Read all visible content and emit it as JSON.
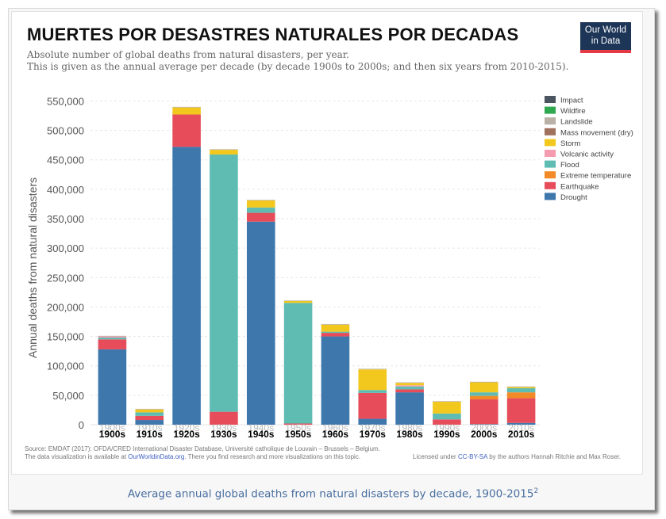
{
  "header": {
    "big_title": "MUERTES POR DESASTRES NATURALES POR DECADAS",
    "subtitle_1": "Absolute number of global deaths from natural disasters, per year.",
    "subtitle_2": "This is given as the annual average per decade (by decade 1900s to 2000s; and then six years from 2010-2015).",
    "logo_line_1": "Our World",
    "logo_line_2": "in Data"
  },
  "footer": {
    "source_line": "Source: EMDAT (2017): OFDA/CRED International Disaster Database, Université catholique de Louvain – Brussels – Belgium.",
    "availability_prefix": "The data visualization is available at ",
    "availability_link": "OurWorldinData.org",
    "availability_suffix": ". There you find research and more visualizations on this topic.",
    "license_prefix": "Licensed under ",
    "license_link": "CC-BY-SA",
    "license_suffix": " by the authors Hannah Ritchie and Max Roser."
  },
  "caption": {
    "text": "Average annual global deaths from natural disasters by decade, 1900-2015",
    "footnote": "2"
  },
  "chart_data": {
    "type": "bar",
    "stacked": true,
    "title": "",
    "xlabel": "",
    "ylabel": "Annual deaths from natural disasters",
    "ylim": [
      0,
      560000
    ],
    "yticks": [
      0,
      50000,
      100000,
      150000,
      200000,
      250000,
      300000,
      350000,
      400000,
      450000,
      500000,
      550000
    ],
    "ytick_labels": [
      "0",
      "50,000",
      "100,000",
      "150,000",
      "200,000",
      "250,000",
      "300,000",
      "350,000",
      "400,000",
      "450,000",
      "500,000",
      "550,000"
    ],
    "categories": [
      "1900s",
      "1910s",
      "1920s",
      "1930s",
      "1940s",
      "1950s",
      "1960s",
      "1970s",
      "1980s",
      "1990s",
      "2000s",
      "2010s"
    ],
    "grid": true,
    "legend_position": "top-right",
    "series": [
      {
        "name": "Drought",
        "color": "#3d77ac",
        "values": [
          128000,
          8000,
          472000,
          0,
          345000,
          0,
          150000,
          10000,
          55000,
          0,
          1000,
          3000
        ]
      },
      {
        "name": "Earthquake",
        "color": "#e74c5a",
        "values": [
          17000,
          7000,
          55000,
          22000,
          15000,
          2000,
          6000,
          44000,
          5000,
          9000,
          42000,
          42000
        ]
      },
      {
        "name": "Extreme temperature",
        "color": "#f28a27",
        "values": [
          0,
          0,
          0,
          0,
          0,
          0,
          0,
          0,
          0,
          0,
          6000,
          10000
        ]
      },
      {
        "name": "Flood",
        "color": "#5ebcb3",
        "values": [
          3000,
          6000,
          0,
          437000,
          9000,
          205000,
          2000,
          5000,
          5000,
          10000,
          6000,
          7000
        ]
      },
      {
        "name": "Volcanic activity",
        "color": "#f49bb0",
        "values": [
          2000,
          0,
          0,
          0,
          0,
          0,
          0,
          0,
          2000,
          0,
          0,
          0
        ]
      },
      {
        "name": "Mass movement (dry)",
        "color": "#a0715c",
        "values": [
          0,
          0,
          0,
          0,
          0,
          0,
          0,
          0,
          0,
          0,
          0,
          0
        ]
      },
      {
        "name": "Storm",
        "color": "#f2c81e",
        "values": [
          0,
          5000,
          12000,
          8000,
          12000,
          3000,
          12000,
          35000,
          4000,
          20000,
          17000,
          2000
        ]
      },
      {
        "name": "Landslide",
        "color": "#b9b1a6",
        "values": [
          1000,
          1000,
          1000,
          1000,
          1000,
          1000,
          1000,
          1000,
          1000,
          1000,
          1000,
          1000
        ]
      },
      {
        "name": "Wildfire",
        "color": "#2fa84f",
        "values": [
          0,
          0,
          0,
          0,
          0,
          0,
          0,
          0,
          0,
          0,
          0,
          0
        ]
      },
      {
        "name": "Impact",
        "color": "#4a5560",
        "values": [
          0,
          0,
          0,
          0,
          0,
          0,
          0,
          0,
          0,
          0,
          0,
          0
        ]
      }
    ],
    "legend_order": [
      "Impact",
      "Wildfire",
      "Landslide",
      "Mass movement (dry)",
      "Storm",
      "Volcanic activity",
      "Flood",
      "Extreme temperature",
      "Earthquake",
      "Drought"
    ]
  }
}
